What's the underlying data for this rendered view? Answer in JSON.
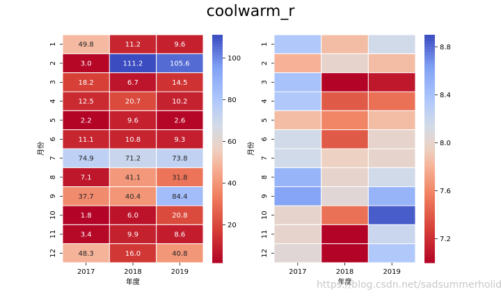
{
  "suptitle": "coolwarm_r",
  "watermark": "https://blog.csdn.net/sadsummerholiday",
  "chart_data": [
    {
      "type": "heatmap",
      "colormap": "coolwarm_r",
      "annotated": true,
      "xlabel": "年度",
      "ylabel": "月份",
      "x_categories": [
        "2017",
        "2018",
        "2019"
      ],
      "y_categories": [
        "1",
        "2",
        "3",
        "4",
        "5",
        "6",
        "7",
        "8",
        "9",
        "10",
        "11",
        "12"
      ],
      "values": [
        [
          49.8,
          11.2,
          9.6
        ],
        [
          3.0,
          111.2,
          105.6
        ],
        [
          18.2,
          6.7,
          14.5
        ],
        [
          12.5,
          20.7,
          10.2
        ],
        [
          2.2,
          9.6,
          2.6
        ],
        [
          11.1,
          10.8,
          9.3
        ],
        [
          74.9,
          71.2,
          73.8
        ],
        [
          7.1,
          41.1,
          31.8
        ],
        [
          37.7,
          40.4,
          84.4
        ],
        [
          1.8,
          6.0,
          20.8
        ],
        [
          3.4,
          9.9,
          8.6
        ],
        [
          48.3,
          16.0,
          40.8
        ]
      ],
      "colorbar": {
        "vmin": 1.8,
        "vmax": 111.2,
        "ticks": [
          20,
          40,
          60,
          80,
          100
        ]
      }
    },
    {
      "type": "heatmap",
      "colormap": "coolwarm_r",
      "annotated": false,
      "xlabel": "年度",
      "ylabel": "月份",
      "x_categories": [
        "2017",
        "2018",
        "2019"
      ],
      "y_categories": [
        "1",
        "2",
        "3",
        "4",
        "5",
        "6",
        "7",
        "8",
        "9",
        "10",
        "11",
        "12"
      ],
      "values": [
        [
          8.35,
          7.85,
          8.15
        ],
        [
          7.8,
          8.0,
          7.85
        ],
        [
          8.4,
          7.0,
          7.1
        ],
        [
          8.35,
          7.4,
          7.5
        ],
        [
          7.85,
          7.6,
          7.85
        ],
        [
          8.15,
          7.4,
          8.0
        ],
        [
          8.15,
          7.95,
          8.0
        ],
        [
          8.5,
          8.0,
          8.15
        ],
        [
          8.6,
          8.05,
          8.5
        ],
        [
          8.0,
          7.5,
          8.85
        ],
        [
          8.0,
          7.0,
          8.2
        ],
        [
          8.05,
          7.0,
          8.35
        ]
      ],
      "colorbar": {
        "vmin": 7.0,
        "vmax": 8.9,
        "ticks": [
          7.2,
          7.6,
          8.0,
          8.4,
          8.8
        ]
      }
    }
  ]
}
